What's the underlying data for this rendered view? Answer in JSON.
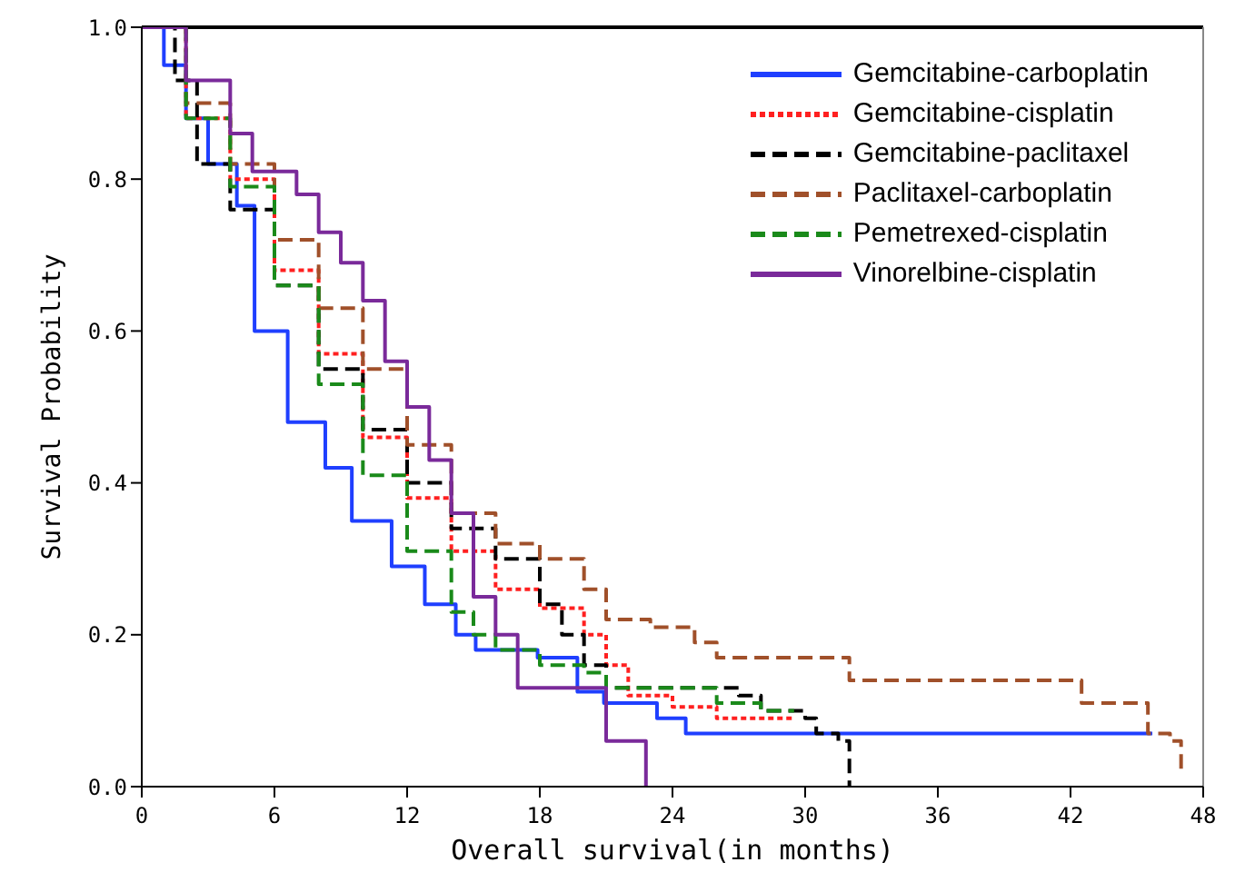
{
  "chart_data": {
    "type": "step",
    "xlabel": "Overall survival(in months)",
    "ylabel": "Survival Probability",
    "xlim": [
      0,
      48
    ],
    "xticks": [
      0,
      6,
      12,
      18,
      24,
      30,
      36,
      42,
      48
    ],
    "ylim": [
      0,
      1
    ],
    "yticks": [
      {
        "value": 0,
        "label": "0.0"
      },
      {
        "value": 0.2,
        "label": "0.2"
      },
      {
        "value": 0.4,
        "label": "0.4"
      },
      {
        "value": 0.6,
        "label": "0.6"
      },
      {
        "value": 0.8,
        "label": "0.8"
      },
      {
        "value": 1,
        "label": "1.0"
      }
    ],
    "grid": false,
    "legend": "top right",
    "marker": "none",
    "series": [
      {
        "name": "Gemcitabine-carboplatin",
        "color": "#1f3fff",
        "line_style": "solid",
        "x": [
          0,
          1,
          2,
          3,
          4.3,
          5.1,
          6.6,
          8.3,
          9.5,
          11.3,
          12.8,
          14.2,
          15.1,
          17.9,
          19.7,
          20.9,
          23.3,
          24.6,
          45.7
        ],
        "values": [
          1,
          0.95,
          0.88,
          0.82,
          0.765,
          0.6,
          0.48,
          0.42,
          0.35,
          0.29,
          0.24,
          0.2,
          0.18,
          0.17,
          0.125,
          0.11,
          0.09,
          0.07,
          0.07
        ]
      },
      {
        "name": "Gemcitabine-cisplatin",
        "color": "#ff2020",
        "line_style": "dotted",
        "x": [
          0,
          2,
          4,
          6,
          8,
          10,
          12,
          14,
          16,
          18,
          20,
          21,
          22,
          24,
          26,
          29.5
        ],
        "values": [
          1,
          0.88,
          0.8,
          0.68,
          0.57,
          0.46,
          0.38,
          0.31,
          0.26,
          0.235,
          0.2,
          0.16,
          0.12,
          0.105,
          0.09,
          0.09
        ]
      },
      {
        "name": "Gemcitabine-paclitaxel",
        "color": "#000000",
        "line_style": "dashed",
        "x": [
          0,
          1.5,
          2.5,
          4,
          6,
          8,
          10,
          12,
          14,
          16,
          18,
          19,
          20,
          21,
          27,
          28,
          30,
          30.5,
          31.5,
          32
        ],
        "values": [
          1,
          0.93,
          0.82,
          0.76,
          0.66,
          0.55,
          0.47,
          0.4,
          0.34,
          0.3,
          0.24,
          0.2,
          0.16,
          0.13,
          0.12,
          0.1,
          0.09,
          0.07,
          0.06,
          0
        ]
      },
      {
        "name": "Paclitaxel-carboplatin",
        "color": "#a0502a",
        "line_style": "dashed",
        "x": [
          0,
          2,
          4,
          6,
          8,
          10,
          12,
          14,
          16,
          18,
          20,
          21,
          23,
          25,
          26,
          32,
          42.5,
          45.5,
          46.5,
          47
        ],
        "values": [
          1,
          0.9,
          0.82,
          0.72,
          0.63,
          0.55,
          0.45,
          0.36,
          0.32,
          0.3,
          0.26,
          0.22,
          0.21,
          0.19,
          0.17,
          0.14,
          0.11,
          0.07,
          0.06,
          0.02
        ]
      },
      {
        "name": "Pemetrexed-cisplatin",
        "color": "#1a8a1a",
        "line_style": "dashed",
        "x": [
          0,
          2,
          4,
          6,
          8,
          10,
          12,
          14,
          15,
          16,
          18,
          20,
          21,
          26,
          28,
          29.5
        ],
        "values": [
          1,
          0.88,
          0.79,
          0.66,
          0.53,
          0.41,
          0.31,
          0.23,
          0.2,
          0.18,
          0.16,
          0.15,
          0.13,
          0.11,
          0.1,
          0.1
        ]
      },
      {
        "name": "Vinorelbine-cisplatin",
        "color": "#7a2a9a",
        "line_style": "solid",
        "x": [
          0,
          1.5,
          2,
          4,
          5,
          7,
          8,
          9,
          10,
          11,
          12,
          13,
          14,
          15,
          16,
          17,
          19.5,
          21,
          22.5,
          22.8
        ],
        "values": [
          1,
          1,
          0.93,
          0.86,
          0.81,
          0.78,
          0.73,
          0.69,
          0.64,
          0.56,
          0.5,
          0.43,
          0.36,
          0.25,
          0.2,
          0.13,
          0.13,
          0.06,
          0.06,
          0
        ]
      }
    ]
  }
}
